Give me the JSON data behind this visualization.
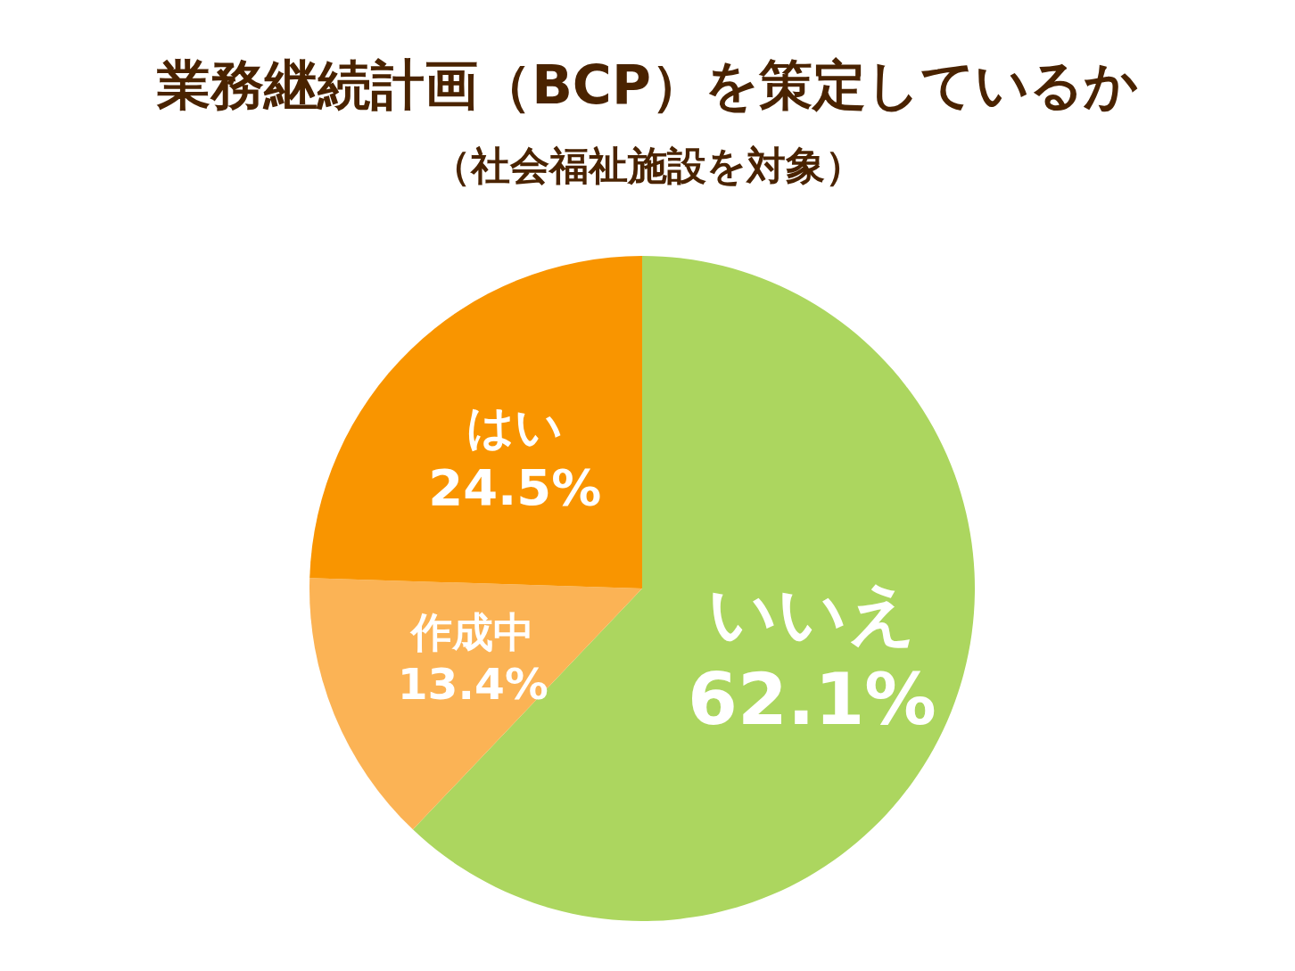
{
  "chart_data": {
    "type": "pie",
    "title": "業務継続計画（BCP）を策定しているか",
    "subtitle": "（社会福祉施設を対象）",
    "categories": [
      "いいえ",
      "作成中",
      "はい"
    ],
    "values": [
      62.1,
      13.4,
      24.5
    ],
    "value_labels": [
      "62.1%",
      "13.4%",
      "24.5%"
    ],
    "colors": [
      "#acd65f",
      "#fbb355",
      "#f99500"
    ]
  }
}
